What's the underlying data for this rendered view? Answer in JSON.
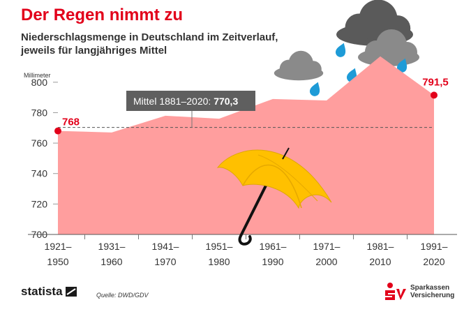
{
  "header": {
    "title": "Der Regen nimmt zu",
    "subtitle_line1": "Niederschlagsmenge in Deutschland im Zeitverlauf,",
    "subtitle_line2": "jeweils für langjähriges Mittel"
  },
  "chart_data": {
    "type": "area",
    "ylabel": "Millimeter",
    "ylim": [
      700,
      810
    ],
    "yticks": [
      700,
      720,
      740,
      760,
      780,
      800
    ],
    "categories": [
      "1921–1950",
      "1931–1960",
      "1941–1970",
      "1951–1980",
      "1961–1990",
      "1971–2000",
      "1981–2010",
      "1991–2020"
    ],
    "category_lines": [
      [
        "1921–",
        "1950"
      ],
      [
        "1931–",
        "1960"
      ],
      [
        "1941–",
        "1970"
      ],
      [
        "1951–",
        "1980"
      ],
      [
        "1961–",
        "1990"
      ],
      [
        "1971–",
        "2000"
      ],
      [
        "1981–",
        "2010"
      ],
      [
        "1991–",
        "2020"
      ]
    ],
    "values": [
      768,
      767,
      778,
      776,
      789,
      788,
      817,
      791.5
    ],
    "first_label": "768",
    "last_label": "791,5",
    "mean": {
      "value": 770.3,
      "label": "Mittel 1881–2020:",
      "value_label": "770,3"
    },
    "grid": false,
    "colors": {
      "area": "#ff9e9e",
      "marker": "#e2001a",
      "mean_box": "#5f5f5f",
      "cloud_dark": "#5a5a5a",
      "cloud_light": "#8a8a8a",
      "raindrop": "#1e9bd7",
      "umbrella": "#ffc000"
    }
  },
  "footer": {
    "brand": "statista",
    "source": "Quelle: DWD/GDV",
    "partner_line1": "Sparkassen",
    "partner_line2": "Versicherung"
  }
}
